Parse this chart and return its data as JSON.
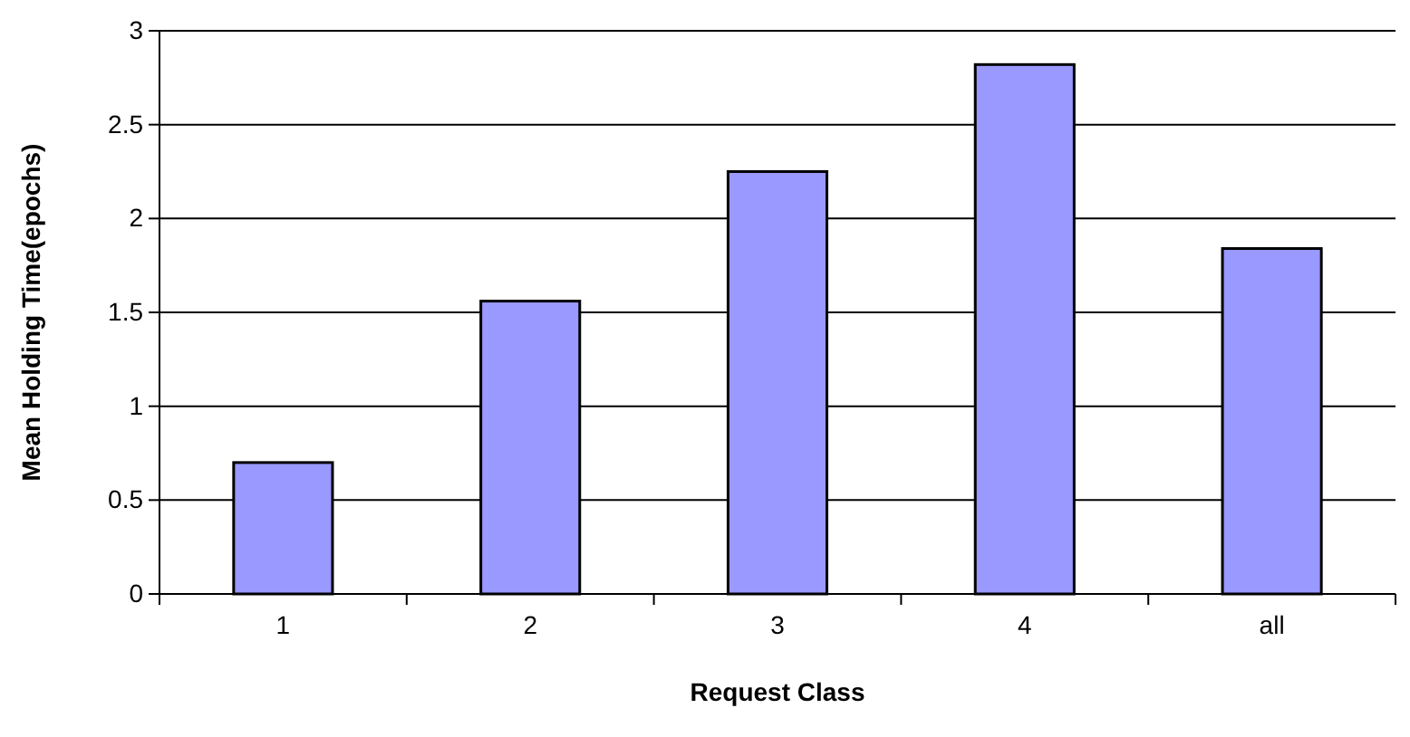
{
  "chart_data": {
    "type": "bar",
    "xlabel": "Request Class",
    "ylabel": "Mean Holding Time(epochs)",
    "categories": [
      "1",
      "2",
      "3",
      "4",
      "all"
    ],
    "values": [
      0.7,
      1.56,
      2.25,
      2.82,
      1.84
    ],
    "color": "#9999ff",
    "ylim": [
      0,
      3
    ],
    "yticks": [
      0,
      0.5,
      1,
      1.5,
      2,
      2.5,
      3
    ],
    "grid": "y"
  }
}
